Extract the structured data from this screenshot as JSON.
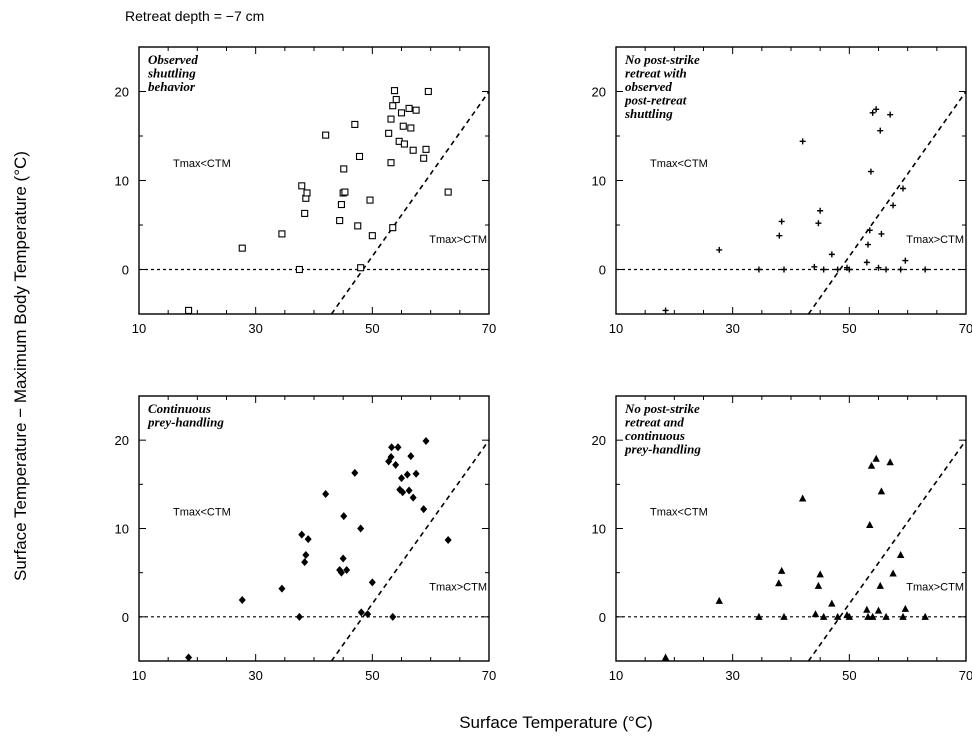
{
  "figure": {
    "header": "Retreat depth = −7 cm",
    "xlabel": "Surface Temperature (°C)",
    "ylabel": "Surface Temperature − Maximum Body Temperature (°C)"
  },
  "chart_data": [
    {
      "type": "scatter",
      "marker": "open-square",
      "title_lines": [
        "Observed",
        "shuttling",
        "behavior"
      ],
      "region_labels": {
        "upper": "Tmax<CTM",
        "lower": "Tmax>CTM"
      },
      "xlim": [
        10,
        70
      ],
      "ylim": [
        -5,
        25
      ],
      "xticks": [
        10,
        30,
        50,
        70
      ],
      "yticks": [
        0,
        10,
        20
      ],
      "reference_lines": [
        {
          "kind": "horizontal",
          "y": 0,
          "style": "dashed"
        },
        {
          "kind": "line",
          "from": [
            43,
            -5
          ],
          "to": [
            70,
            20
          ],
          "style": "dashed"
        }
      ],
      "points": [
        [
          18.5,
          -4.6
        ],
        [
          27.7,
          2.4
        ],
        [
          34.5,
          4.0
        ],
        [
          37.5,
          0.0
        ],
        [
          37.9,
          9.4
        ],
        [
          38.4,
          6.3
        ],
        [
          38.6,
          8.0
        ],
        [
          38.8,
          8.6
        ],
        [
          42.0,
          15.1
        ],
        [
          44.4,
          5.5
        ],
        [
          44.7,
          7.3
        ],
        [
          45.0,
          8.6
        ],
        [
          45.1,
          11.3
        ],
        [
          45.3,
          8.7
        ],
        [
          47.0,
          16.3
        ],
        [
          47.5,
          4.9
        ],
        [
          47.8,
          12.7
        ],
        [
          48.0,
          0.2
        ],
        [
          49.6,
          7.8
        ],
        [
          50.0,
          3.8
        ],
        [
          52.8,
          15.3
        ],
        [
          53.2,
          16.9
        ],
        [
          53.5,
          4.7
        ],
        [
          53.8,
          20.1
        ],
        [
          53.2,
          12.0
        ],
        [
          53.5,
          18.4
        ],
        [
          54.1,
          19.1
        ],
        [
          54.6,
          14.4
        ],
        [
          55.0,
          17.6
        ],
        [
          55.3,
          16.1
        ],
        [
          55.5,
          14.1
        ],
        [
          56.3,
          18.1
        ],
        [
          56.6,
          15.9
        ],
        [
          57.0,
          13.4
        ],
        [
          57.5,
          17.9
        ],
        [
          58.8,
          12.5
        ],
        [
          59.2,
          13.5
        ],
        [
          59.6,
          20.0
        ],
        [
          63.0,
          8.7
        ]
      ]
    },
    {
      "type": "scatter",
      "marker": "plus",
      "title_lines": [
        "No post-strike",
        "retreat with",
        "observed",
        "post-retreat",
        "shuttling"
      ],
      "region_labels": {
        "upper": "Tmax<CTM",
        "lower": "Tmax>CTM"
      },
      "xlim": [
        10,
        70
      ],
      "ylim": [
        -5,
        25
      ],
      "xticks": [
        10,
        30,
        50,
        70
      ],
      "yticks": [
        0,
        10,
        20
      ],
      "reference_lines": [
        {
          "kind": "horizontal",
          "y": 0,
          "style": "dashed"
        },
        {
          "kind": "line",
          "from": [
            43,
            -5
          ],
          "to": [
            70,
            20
          ],
          "style": "dashed"
        }
      ],
      "points": [
        [
          18.5,
          -4.6
        ],
        [
          27.7,
          2.2
        ],
        [
          34.5,
          0.0
        ],
        [
          38.0,
          3.8
        ],
        [
          38.4,
          5.4
        ],
        [
          38.8,
          0.0
        ],
        [
          42.0,
          14.4
        ],
        [
          44.0,
          0.3
        ],
        [
          44.7,
          5.2
        ],
        [
          45.0,
          6.6
        ],
        [
          45.6,
          0.0
        ],
        [
          47.0,
          1.7
        ],
        [
          48.0,
          0.0
        ],
        [
          49.6,
          0.2
        ],
        [
          50.0,
          0.0
        ],
        [
          53.0,
          0.8
        ],
        [
          53.2,
          2.8
        ],
        [
          53.5,
          4.4
        ],
        [
          53.7,
          11.0
        ],
        [
          54.0,
          17.6
        ],
        [
          54.6,
          18.0
        ],
        [
          55.0,
          0.2
        ],
        [
          55.3,
          15.6
        ],
        [
          55.5,
          4.0
        ],
        [
          56.3,
          0.0
        ],
        [
          57.0,
          17.4
        ],
        [
          57.5,
          7.2
        ],
        [
          58.8,
          0.0
        ],
        [
          59.2,
          9.1
        ],
        [
          59.6,
          1.0
        ],
        [
          63.0,
          0.0
        ]
      ]
    },
    {
      "type": "scatter",
      "marker": "filled-diamond",
      "title_lines": [
        "Continuous",
        "prey-handling"
      ],
      "region_labels": {
        "upper": "Tmax<CTM",
        "lower": "Tmax>CTM"
      },
      "xlim": [
        10,
        70
      ],
      "ylim": [
        -5,
        25
      ],
      "xticks": [
        10,
        30,
        50,
        70
      ],
      "yticks": [
        0,
        10,
        20
      ],
      "reference_lines": [
        {
          "kind": "horizontal",
          "y": 0,
          "style": "dashed"
        },
        {
          "kind": "line",
          "from": [
            43,
            -5
          ],
          "to": [
            70,
            20
          ],
          "style": "dashed"
        }
      ],
      "points": [
        [
          18.5,
          -4.6
        ],
        [
          27.7,
          1.9
        ],
        [
          34.5,
          3.2
        ],
        [
          37.5,
          0.0
        ],
        [
          37.9,
          9.3
        ],
        [
          38.4,
          6.2
        ],
        [
          38.6,
          7.0
        ],
        [
          39.0,
          8.8
        ],
        [
          42.0,
          13.9
        ],
        [
          44.4,
          5.3
        ],
        [
          44.7,
          5.0
        ],
        [
          45.0,
          6.6
        ],
        [
          45.1,
          11.4
        ],
        [
          45.6,
          5.3
        ],
        [
          47.0,
          16.3
        ],
        [
          48.0,
          10.0
        ],
        [
          48.1,
          0.5
        ],
        [
          49.2,
          0.3
        ],
        [
          50.0,
          3.9
        ],
        [
          52.8,
          17.6
        ],
        [
          53.2,
          18.1
        ],
        [
          53.3,
          19.2
        ],
        [
          53.5,
          0.0
        ],
        [
          54.0,
          17.2
        ],
        [
          54.4,
          19.2
        ],
        [
          54.7,
          14.4
        ],
        [
          55.0,
          15.7
        ],
        [
          55.2,
          14.1
        ],
        [
          56.0,
          16.1
        ],
        [
          56.3,
          14.3
        ],
        [
          56.6,
          18.2
        ],
        [
          57.0,
          13.5
        ],
        [
          57.5,
          16.2
        ],
        [
          58.8,
          12.2
        ],
        [
          59.2,
          19.9
        ],
        [
          63.0,
          8.7
        ]
      ]
    },
    {
      "type": "scatter",
      "marker": "filled-triangle",
      "title_lines": [
        "No post-strike",
        "retreat and",
        "continuous",
        "prey-handling"
      ],
      "region_labels": {
        "upper": "Tmax<CTM",
        "lower": "Tmax>CTM"
      },
      "xlim": [
        10,
        70
      ],
      "ylim": [
        -5,
        25
      ],
      "xticks": [
        10,
        30,
        50,
        70
      ],
      "yticks": [
        0,
        10,
        20
      ],
      "reference_lines": [
        {
          "kind": "horizontal",
          "y": 0,
          "style": "dashed"
        },
        {
          "kind": "line",
          "from": [
            43,
            -5
          ],
          "to": [
            70,
            20
          ],
          "style": "dashed"
        }
      ],
      "points": [
        [
          18.5,
          -4.6
        ],
        [
          27.7,
          1.8
        ],
        [
          34.5,
          0.0
        ],
        [
          37.9,
          3.8
        ],
        [
          38.4,
          5.2
        ],
        [
          38.8,
          0.0
        ],
        [
          42.0,
          13.4
        ],
        [
          44.2,
          0.3
        ],
        [
          44.7,
          3.5
        ],
        [
          45.0,
          4.8
        ],
        [
          45.6,
          0.0
        ],
        [
          47.0,
          1.5
        ],
        [
          48.0,
          0.0
        ],
        [
          49.6,
          0.2
        ],
        [
          50.0,
          0.0
        ],
        [
          53.0,
          0.8
        ],
        [
          53.2,
          0.0
        ],
        [
          53.5,
          10.4
        ],
        [
          53.8,
          17.1
        ],
        [
          54.0,
          0.0
        ],
        [
          54.6,
          17.9
        ],
        [
          55.0,
          0.7
        ],
        [
          55.3,
          3.5
        ],
        [
          55.5,
          14.2
        ],
        [
          56.3,
          0.0
        ],
        [
          57.0,
          17.5
        ],
        [
          57.5,
          4.9
        ],
        [
          58.8,
          7.0
        ],
        [
          59.2,
          0.0
        ],
        [
          59.6,
          0.9
        ],
        [
          63.0,
          0.0
        ]
      ]
    }
  ]
}
